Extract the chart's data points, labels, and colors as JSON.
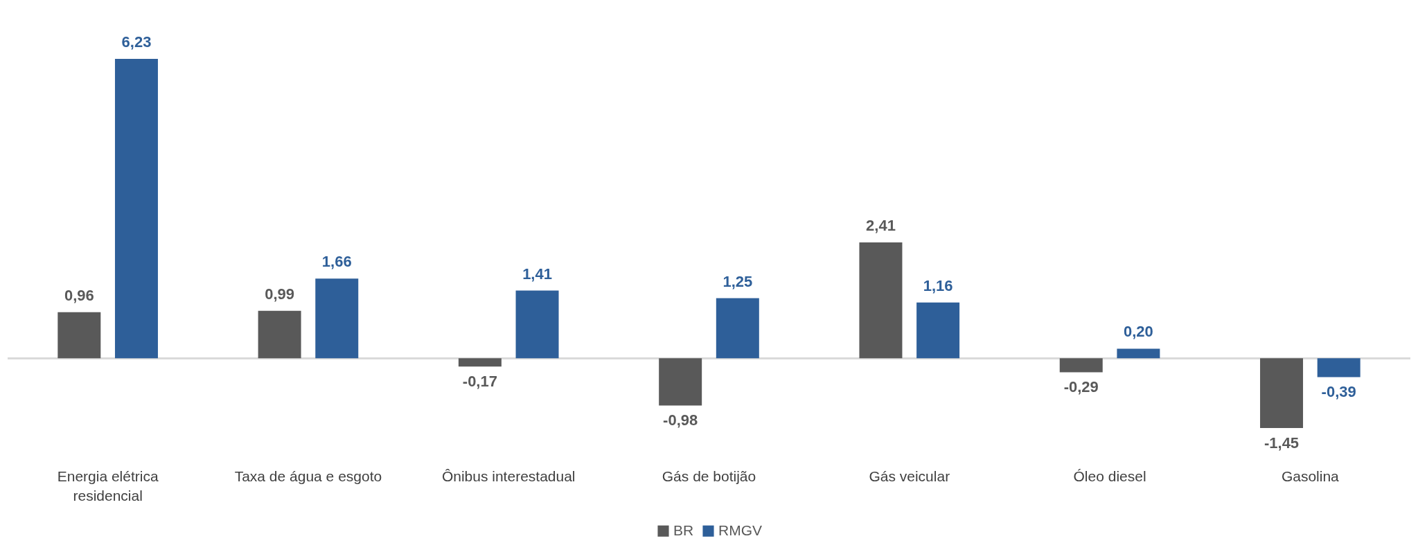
{
  "chart_data": {
    "type": "bar",
    "categories": [
      "Energia elétrica residencial",
      "Taxa de água e esgoto",
      "Ônibus interestadual",
      "Gás de botijão",
      "Gás veicular",
      "Óleo diesel",
      "Gasolina"
    ],
    "series": [
      {
        "name": "BR",
        "color": "#595959",
        "values": [
          0.96,
          0.99,
          -0.17,
          -0.98,
          2.41,
          -0.29,
          -1.45
        ],
        "value_labels": [
          "0,96",
          "0,99",
          "-0,17",
          "-0,98",
          "2,41",
          "-0,29",
          "-1,45"
        ]
      },
      {
        "name": "RMGV",
        "color": "#2e5f99",
        "values": [
          6.23,
          1.66,
          1.41,
          1.25,
          1.16,
          0.2,
          -0.39
        ],
        "value_labels": [
          "6,23",
          "1,66",
          "1,41",
          "1,25",
          "1,16",
          "0,20",
          "-0,39"
        ]
      }
    ],
    "legend": "bottom",
    "tick_labels": "x"
  }
}
